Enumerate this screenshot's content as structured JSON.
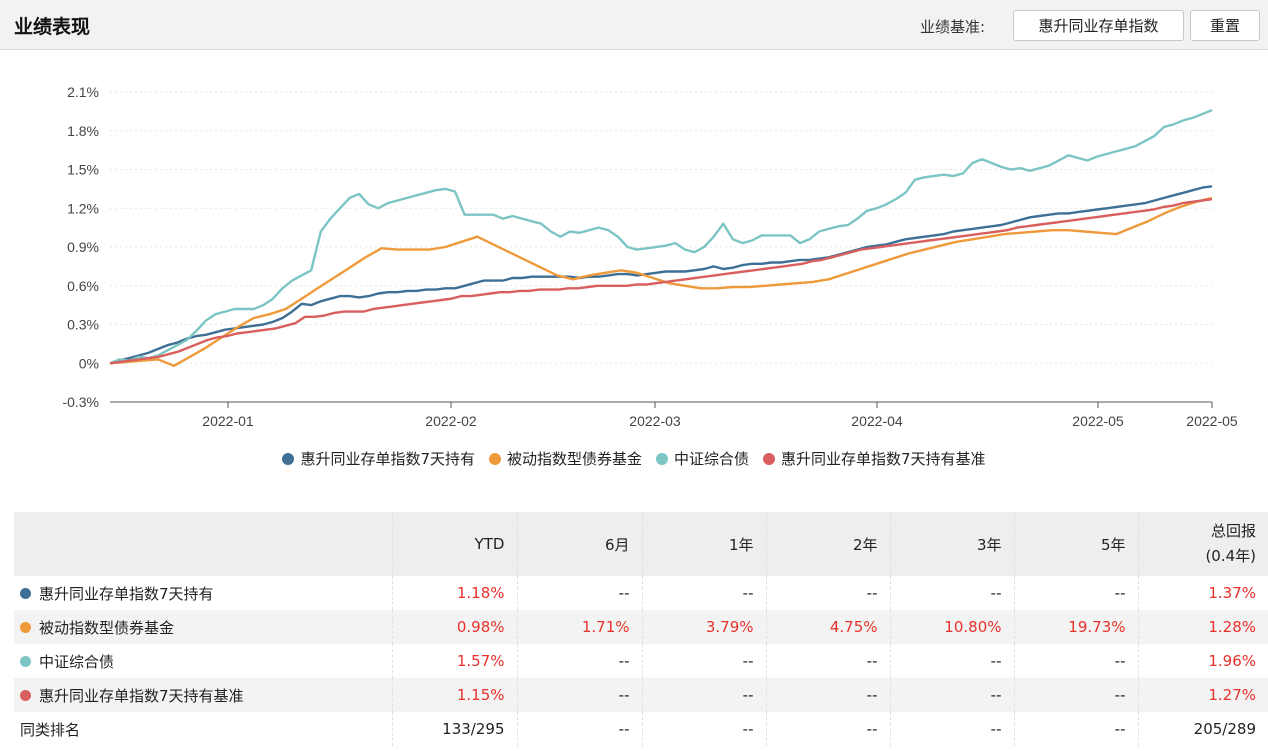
{
  "header": {
    "title": "业绩表现",
    "benchmark_label": "业绩基准:",
    "benchmark_value": "惠升同业存单指数",
    "reset_label": "重置"
  },
  "colors": {
    "s1": "#3e6f95",
    "s2": "#ef9a3a",
    "s3": "#7cc5c4",
    "s4": "#d95f5f"
  },
  "chart_data": {
    "type": "line",
    "x_ticks": [
      "2022-01",
      "2022-02",
      "2022-03",
      "2022-04",
      "2022-05",
      "2022-05"
    ],
    "y_ticks": [
      "2.1%",
      "1.8%",
      "1.5%",
      "1.2%",
      "0.9%",
      "0.6%",
      "0.3%",
      "0%",
      "-0.3%"
    ],
    "ylim": [
      -0.3,
      2.1
    ],
    "series": [
      {
        "name": "惠升同业存单指数7天持有",
        "color": "#3e6f95",
        "values": [
          0,
          0.02,
          0.04,
          0.06,
          0.08,
          0.11,
          0.14,
          0.16,
          0.19,
          0.21,
          0.22,
          0.24,
          0.26,
          0.27,
          0.28,
          0.29,
          0.3,
          0.32,
          0.35,
          0.4,
          0.46,
          0.45,
          0.48,
          0.5,
          0.52,
          0.52,
          0.51,
          0.52,
          0.54,
          0.55,
          0.55,
          0.56,
          0.56,
          0.57,
          0.57,
          0.58,
          0.58,
          0.6,
          0.62,
          0.64,
          0.64,
          0.64,
          0.66,
          0.66,
          0.67,
          0.67,
          0.67,
          0.67,
          0.67,
          0.66,
          0.67,
          0.67,
          0.68,
          0.69,
          0.69,
          0.68,
          0.69,
          0.7,
          0.71,
          0.71,
          0.71,
          0.72,
          0.73,
          0.75,
          0.73,
          0.74,
          0.76,
          0.77,
          0.77,
          0.78,
          0.78,
          0.79,
          0.8,
          0.8,
          0.81,
          0.82,
          0.84,
          0.86,
          0.88,
          0.9,
          0.91,
          0.92,
          0.94,
          0.96,
          0.97,
          0.98,
          0.99,
          1.0,
          1.02,
          1.03,
          1.04,
          1.05,
          1.06,
          1.07,
          1.09,
          1.11,
          1.13,
          1.14,
          1.15,
          1.16,
          1.16,
          1.17,
          1.18,
          1.19,
          1.2,
          1.21,
          1.22,
          1.23,
          1.24,
          1.26,
          1.28,
          1.3,
          1.32,
          1.34,
          1.36,
          1.37
        ]
      },
      {
        "name": "被动指数型债券基金",
        "color": "#ef9a3a",
        "values": [
          0,
          0.01,
          0.02,
          0.03,
          -0.02,
          0.05,
          0.12,
          0.2,
          0.28,
          0.35,
          0.38,
          0.42,
          0.5,
          0.58,
          0.66,
          0.74,
          0.82,
          0.89,
          0.88,
          0.88,
          0.88,
          0.9,
          0.94,
          0.98,
          0.92,
          0.86,
          0.8,
          0.74,
          0.68,
          0.65,
          0.68,
          0.7,
          0.72,
          0.7,
          0.66,
          0.62,
          0.6,
          0.58,
          0.58,
          0.59,
          0.59,
          0.6,
          0.61,
          0.62,
          0.63,
          0.65,
          0.69,
          0.73,
          0.77,
          0.81,
          0.85,
          0.88,
          0.91,
          0.94,
          0.96,
          0.98,
          1.0,
          1.01,
          1.02,
          1.03,
          1.03,
          1.02,
          1.01,
          1.0,
          1.05,
          1.1,
          1.16,
          1.21,
          1.25,
          1.28
        ]
      },
      {
        "name": "中证综合债",
        "color": "#7cc5c4",
        "values": [
          0,
          0.03,
          0.02,
          0.05,
          0.04,
          0.06,
          0.1,
          0.14,
          0.18,
          0.25,
          0.33,
          0.38,
          0.4,
          0.42,
          0.42,
          0.42,
          0.45,
          0.5,
          0.58,
          0.64,
          0.68,
          0.72,
          1.02,
          1.12,
          1.2,
          1.28,
          1.31,
          1.23,
          1.2,
          1.24,
          1.26,
          1.28,
          1.3,
          1.32,
          1.34,
          1.35,
          1.33,
          1.15,
          1.15,
          1.15,
          1.15,
          1.12,
          1.14,
          1.12,
          1.1,
          1.08,
          1.02,
          0.98,
          1.02,
          1.01,
          1.03,
          1.05,
          1.03,
          0.98,
          0.9,
          0.88,
          0.89,
          0.9,
          0.91,
          0.93,
          0.88,
          0.86,
          0.9,
          0.98,
          1.08,
          0.96,
          0.93,
          0.95,
          0.99,
          0.99,
          0.99,
          0.99,
          0.93,
          0.96,
          1.02,
          1.04,
          1.06,
          1.07,
          1.12,
          1.18,
          1.2,
          1.23,
          1.27,
          1.32,
          1.42,
          1.44,
          1.45,
          1.46,
          1.45,
          1.47,
          1.55,
          1.58,
          1.55,
          1.52,
          1.5,
          1.51,
          1.49,
          1.51,
          1.53,
          1.57,
          1.61,
          1.59,
          1.57,
          1.6,
          1.62,
          1.64,
          1.66,
          1.68,
          1.72,
          1.76,
          1.83,
          1.85,
          1.88,
          1.9,
          1.93,
          1.96
        ]
      },
      {
        "name": "惠升同业存单指数7天持有基准",
        "color": "#d95f5f",
        "values": [
          0,
          0.01,
          0.02,
          0.03,
          0.04,
          0.05,
          0.07,
          0.09,
          0.12,
          0.15,
          0.18,
          0.2,
          0.21,
          0.23,
          0.24,
          0.25,
          0.26,
          0.27,
          0.29,
          0.31,
          0.36,
          0.36,
          0.37,
          0.39,
          0.4,
          0.4,
          0.4,
          0.42,
          0.43,
          0.44,
          0.45,
          0.46,
          0.47,
          0.48,
          0.49,
          0.5,
          0.52,
          0.52,
          0.53,
          0.54,
          0.55,
          0.55,
          0.56,
          0.56,
          0.57,
          0.57,
          0.57,
          0.58,
          0.58,
          0.59,
          0.6,
          0.6,
          0.6,
          0.6,
          0.61,
          0.61,
          0.62,
          0.63,
          0.64,
          0.65,
          0.66,
          0.67,
          0.68,
          0.69,
          0.7,
          0.71,
          0.72,
          0.73,
          0.74,
          0.75,
          0.76,
          0.77,
          0.79,
          0.8,
          0.82,
          0.84,
          0.86,
          0.88,
          0.89,
          0.9,
          0.91,
          0.92,
          0.93,
          0.94,
          0.95,
          0.96,
          0.97,
          0.98,
          0.99,
          1.0,
          1.01,
          1.02,
          1.03,
          1.05,
          1.06,
          1.07,
          1.08,
          1.09,
          1.1,
          1.11,
          1.12,
          1.13,
          1.14,
          1.15,
          1.16,
          1.17,
          1.18,
          1.19,
          1.21,
          1.22,
          1.24,
          1.25,
          1.26,
          1.27
        ]
      }
    ]
  },
  "table": {
    "headers": [
      "YTD",
      "6月",
      "1年",
      "2年",
      "3年",
      "5年",
      "总回报",
      "(0.4年)"
    ],
    "rows": [
      {
        "name": "惠升同业存单指数7天持有",
        "color": "#3e6f95",
        "ytd": "1.18%",
        "m6": "--",
        "y1": "--",
        "y2": "--",
        "y3": "--",
        "y5": "--",
        "total": "1.37%"
      },
      {
        "name": "被动指数型债券基金",
        "color": "#ef9a3a",
        "ytd": "0.98%",
        "m6": "1.71%",
        "y1": "3.79%",
        "y2": "4.75%",
        "y3": "10.80%",
        "y5": "19.73%",
        "total": "1.28%"
      },
      {
        "name": "中证综合债",
        "color": "#7cc5c4",
        "ytd": "1.57%",
        "m6": "--",
        "y1": "--",
        "y2": "--",
        "y3": "--",
        "y5": "--",
        "total": "1.96%"
      },
      {
        "name": "惠升同业存单指数7天持有基准",
        "color": "#d95f5f",
        "ytd": "1.15%",
        "m6": "--",
        "y1": "--",
        "y2": "--",
        "y3": "--",
        "y5": "--",
        "total": "1.27%"
      }
    ],
    "rank": {
      "name": "同类排名",
      "ytd": "133/295",
      "m6": "--",
      "y1": "--",
      "y2": "--",
      "y3": "--",
      "y5": "--",
      "total": "205/289"
    }
  }
}
